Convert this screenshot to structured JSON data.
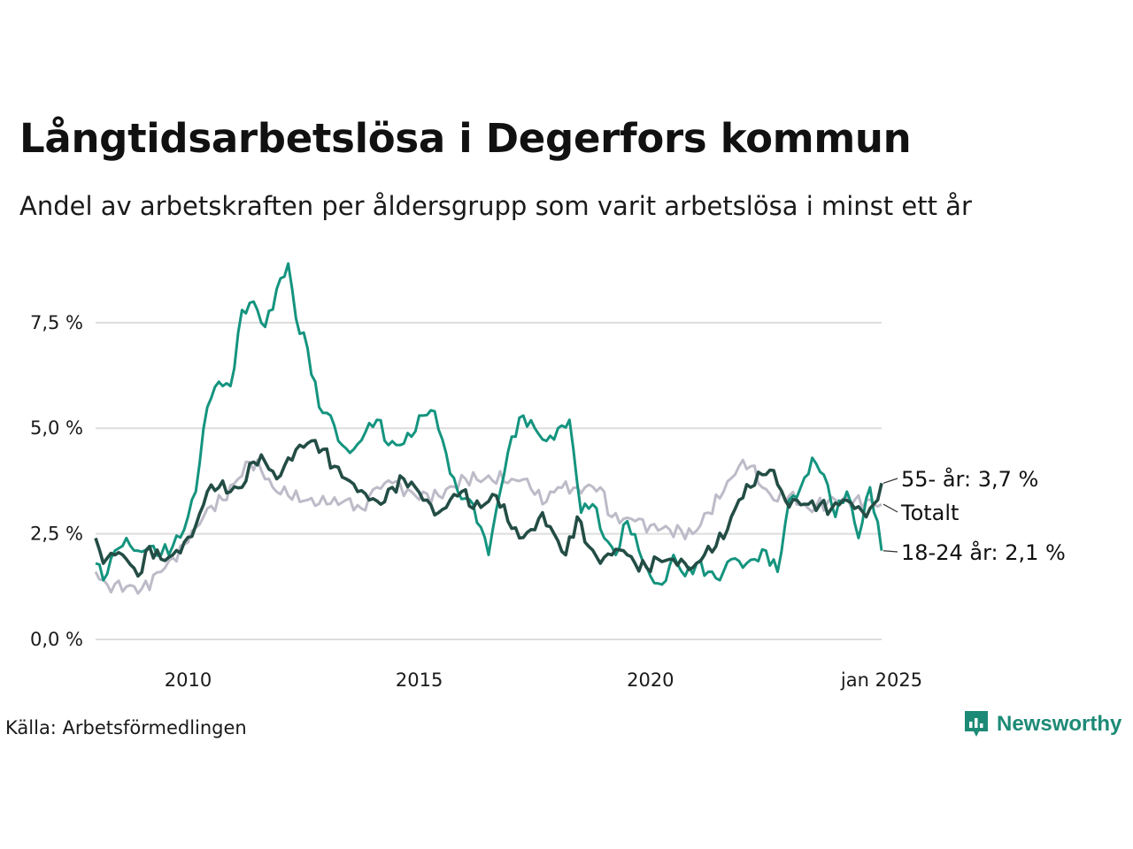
{
  "title": "Långtidsarbetslösa i Degerfors kommun",
  "subtitle": "Andel av arbetskraften per åldersgrupp som varit arbetslösa i minst ett år",
  "source": "Källa: Arbetsförmedlingen",
  "brand": "Newsworthy",
  "colors": {
    "youth": "#14947f",
    "senior": "#234d45",
    "total": "#bdbbc8",
    "grid": "#dddddd",
    "brand": "#1d8a76"
  },
  "chart_data": {
    "type": "line",
    "x_start": "2008-01",
    "x_end": "2025-01",
    "frequency": "monthly",
    "ylim": [
      0,
      8.9
    ],
    "y_ticks": [
      {
        "value": 0,
        "label": "0,0 %"
      },
      {
        "value": 2.5,
        "label": "2,5 %"
      },
      {
        "value": 5,
        "label": "5,0 %"
      },
      {
        "value": 7.5,
        "label": "7,5 %"
      }
    ],
    "x_ticks": [
      {
        "date": "2010-01",
        "label": "2010"
      },
      {
        "date": "2015-01",
        "label": "2015"
      },
      {
        "date": "2020-01",
        "label": "2020"
      },
      {
        "date": "2025-01",
        "label": "jan 2025"
      }
    ],
    "series": [
      {
        "key": "total",
        "name": "Totalt",
        "end_label": "Totalt",
        "anchors": [
          [
            "2008-01",
            1.6
          ],
          [
            "2008-04",
            1.3
          ],
          [
            "2009-01",
            1.2
          ],
          [
            "2009-06",
            1.6
          ],
          [
            "2010-01",
            2.3
          ],
          [
            "2010-06",
            3.1
          ],
          [
            "2010-10",
            3.3
          ],
          [
            "2011-02",
            3.8
          ],
          [
            "2011-05",
            4.2
          ],
          [
            "2011-08",
            4.0
          ],
          [
            "2011-11",
            3.6
          ],
          [
            "2012-03",
            3.4
          ],
          [
            "2012-08",
            3.3
          ],
          [
            "2013-01",
            3.2
          ],
          [
            "2013-06",
            3.3
          ],
          [
            "2013-10",
            3.1
          ],
          [
            "2014-02",
            3.6
          ],
          [
            "2014-06",
            3.7
          ],
          [
            "2014-12",
            3.4
          ],
          [
            "2015-06",
            3.4
          ],
          [
            "2016-01",
            3.8
          ],
          [
            "2016-06",
            3.8
          ],
          [
            "2017-01",
            3.8
          ],
          [
            "2017-05",
            3.8
          ],
          [
            "2017-09",
            3.2
          ],
          [
            "2018-01",
            3.6
          ],
          [
            "2018-06",
            3.6
          ],
          [
            "2018-12",
            3.6
          ],
          [
            "2019-03",
            2.9
          ],
          [
            "2019-09",
            2.8
          ],
          [
            "2020-01",
            2.7
          ],
          [
            "2020-06",
            2.6
          ],
          [
            "2020-12",
            2.5
          ],
          [
            "2021-04",
            3.0
          ],
          [
            "2021-08",
            3.5
          ],
          [
            "2021-12",
            4.1
          ],
          [
            "2022-03",
            4.1
          ],
          [
            "2022-06",
            3.6
          ],
          [
            "2022-09",
            3.3
          ],
          [
            "2023-01",
            3.4
          ],
          [
            "2023-06",
            3.1
          ],
          [
            "2024-01",
            3.3
          ],
          [
            "2024-06",
            3.3
          ],
          [
            "2025-01",
            3.2
          ]
        ]
      },
      {
        "key": "youth",
        "name": "18-24 år",
        "end_label": "18-24 år: 2,1 %",
        "anchors": [
          [
            "2008-01",
            1.8
          ],
          [
            "2008-03",
            1.4
          ],
          [
            "2008-06",
            2.1
          ],
          [
            "2008-09",
            2.4
          ],
          [
            "2008-12",
            2.1
          ],
          [
            "2009-03",
            2.2
          ],
          [
            "2009-06",
            2.0
          ],
          [
            "2009-09",
            2.2
          ],
          [
            "2009-12",
            2.6
          ],
          [
            "2010-03",
            3.5
          ],
          [
            "2010-06",
            5.5
          ],
          [
            "2010-09",
            6.1
          ],
          [
            "2010-12",
            6.0
          ],
          [
            "2011-03",
            7.8
          ],
          [
            "2011-06",
            8.0
          ],
          [
            "2011-09",
            7.4
          ],
          [
            "2011-12",
            8.3
          ],
          [
            "2012-03",
            8.9
          ],
          [
            "2012-05",
            7.6
          ],
          [
            "2012-08",
            6.9
          ],
          [
            "2012-11",
            5.5
          ],
          [
            "2013-02",
            5.3
          ],
          [
            "2013-05",
            4.6
          ],
          [
            "2013-08",
            4.5
          ],
          [
            "2013-11",
            4.9
          ],
          [
            "2014-02",
            5.2
          ],
          [
            "2014-05",
            4.6
          ],
          [
            "2014-08",
            4.6
          ],
          [
            "2014-11",
            4.8
          ],
          [
            "2015-02",
            5.3
          ],
          [
            "2015-05",
            5.4
          ],
          [
            "2015-08",
            4.4
          ],
          [
            "2015-11",
            3.5
          ],
          [
            "2016-03",
            3.2
          ],
          [
            "2016-07",
            2.0
          ],
          [
            "2016-10",
            3.5
          ],
          [
            "2017-01",
            4.8
          ],
          [
            "2017-04",
            5.3
          ],
          [
            "2017-07",
            5.0
          ],
          [
            "2017-10",
            4.7
          ],
          [
            "2018-01",
            5.0
          ],
          [
            "2018-04",
            5.2
          ],
          [
            "2018-07",
            3.0
          ],
          [
            "2018-10",
            3.2
          ],
          [
            "2019-01",
            2.4
          ],
          [
            "2019-04",
            2.0
          ],
          [
            "2019-07",
            2.8
          ],
          [
            "2019-10",
            2.1
          ],
          [
            "2020-01",
            1.5
          ],
          [
            "2020-04",
            1.3
          ],
          [
            "2020-07",
            2.0
          ],
          [
            "2020-10",
            1.5
          ],
          [
            "2021-01",
            1.8
          ],
          [
            "2021-04",
            1.6
          ],
          [
            "2021-07",
            1.4
          ],
          [
            "2021-10",
            1.9
          ],
          [
            "2022-01",
            1.7
          ],
          [
            "2022-04",
            1.9
          ],
          [
            "2022-07",
            2.1
          ],
          [
            "2022-10",
            1.6
          ],
          [
            "2023-01",
            3.3
          ],
          [
            "2023-04",
            3.6
          ],
          [
            "2023-07",
            4.3
          ],
          [
            "2023-10",
            3.9
          ],
          [
            "2024-01",
            2.9
          ],
          [
            "2024-04",
            3.5
          ],
          [
            "2024-07",
            2.4
          ],
          [
            "2024-10",
            3.6
          ],
          [
            "2025-01",
            2.1
          ]
        ]
      },
      {
        "key": "senior",
        "name": "55- år",
        "end_label": "55- år: 3,7 %",
        "anchors": [
          [
            "2008-01",
            2.4
          ],
          [
            "2008-03",
            1.8
          ],
          [
            "2008-06",
            2.0
          ],
          [
            "2008-09",
            1.9
          ],
          [
            "2008-12",
            1.5
          ],
          [
            "2009-03",
            2.2
          ],
          [
            "2009-06",
            1.9
          ],
          [
            "2009-09",
            2.0
          ],
          [
            "2009-12",
            2.3
          ],
          [
            "2010-03",
            2.7
          ],
          [
            "2010-06",
            3.5
          ],
          [
            "2010-09",
            3.6
          ],
          [
            "2010-12",
            3.5
          ],
          [
            "2011-03",
            3.6
          ],
          [
            "2011-06",
            4.2
          ],
          [
            "2011-09",
            4.2
          ],
          [
            "2011-12",
            3.8
          ],
          [
            "2012-03",
            4.3
          ],
          [
            "2012-06",
            4.6
          ],
          [
            "2012-09",
            4.7
          ],
          [
            "2012-12",
            4.5
          ],
          [
            "2013-03",
            4.1
          ],
          [
            "2013-06",
            3.8
          ],
          [
            "2013-09",
            3.5
          ],
          [
            "2013-12",
            3.3
          ],
          [
            "2014-03",
            3.2
          ],
          [
            "2014-06",
            3.6
          ],
          [
            "2014-09",
            3.8
          ],
          [
            "2014-12",
            3.6
          ],
          [
            "2015-03",
            3.3
          ],
          [
            "2015-06",
            3.0
          ],
          [
            "2015-09",
            3.3
          ],
          [
            "2015-12",
            3.5
          ],
          [
            "2016-03",
            3.1
          ],
          [
            "2016-06",
            3.2
          ],
          [
            "2016-09",
            3.4
          ],
          [
            "2016-12",
            2.8
          ],
          [
            "2017-03",
            2.4
          ],
          [
            "2017-06",
            2.6
          ],
          [
            "2017-09",
            3.0
          ],
          [
            "2017-12",
            2.5
          ],
          [
            "2018-03",
            2.0
          ],
          [
            "2018-06",
            2.9
          ],
          [
            "2018-09",
            2.2
          ],
          [
            "2018-12",
            1.8
          ],
          [
            "2019-03",
            2.0
          ],
          [
            "2019-06",
            2.1
          ],
          [
            "2019-09",
            1.8
          ],
          [
            "2019-12",
            1.7
          ],
          [
            "2020-03",
            1.9
          ],
          [
            "2020-06",
            1.9
          ],
          [
            "2020-09",
            1.9
          ],
          [
            "2020-12",
            1.7
          ],
          [
            "2021-03",
            2.0
          ],
          [
            "2021-06",
            2.2
          ],
          [
            "2021-09",
            2.6
          ],
          [
            "2021-12",
            3.3
          ],
          [
            "2022-03",
            3.6
          ],
          [
            "2022-06",
            3.9
          ],
          [
            "2022-09",
            4.0
          ],
          [
            "2022-12",
            3.3
          ],
          [
            "2023-03",
            3.3
          ],
          [
            "2023-06",
            3.2
          ],
          [
            "2023-09",
            3.2
          ],
          [
            "2023-12",
            3.1
          ],
          [
            "2024-03",
            3.3
          ],
          [
            "2024-06",
            3.1
          ],
          [
            "2024-09",
            2.9
          ],
          [
            "2024-12",
            3.3
          ],
          [
            "2025-01",
            3.7
          ]
        ]
      }
    ]
  }
}
